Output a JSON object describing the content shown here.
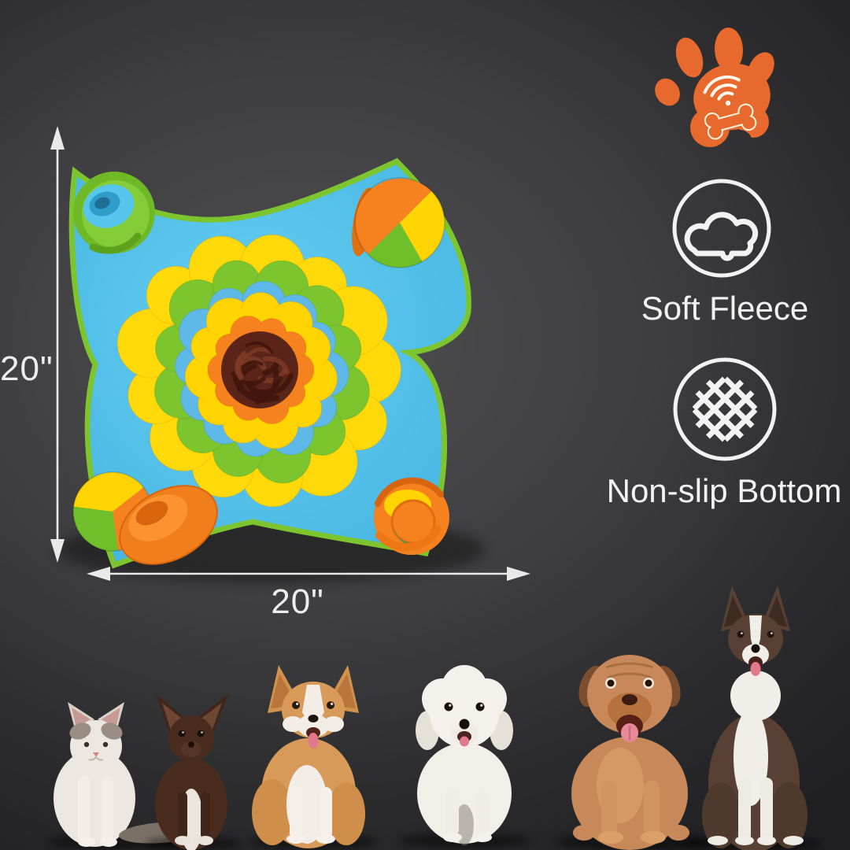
{
  "colors": {
    "accent-orange": "#e7692d",
    "icon-white": "#f2f2f2",
    "mat-blue": "#56c6ec",
    "mat-green": "#7cc52f",
    "petal-yellow": "#ffd90a",
    "petal-green": "#7cc52f",
    "petal-blue": "#5fb9e8",
    "ring-yellow": "#ffd400",
    "ring-orange": "#f6821f",
    "center-brown": "#5a2418"
  },
  "logo": {
    "name": "paw-wifi-bone"
  },
  "dimensions": {
    "height": "20\"",
    "width": "20\""
  },
  "features": [
    {
      "icon": "cloud-icon",
      "label": "Soft Fleece"
    },
    {
      "icon": "mesh-icon",
      "label": "Non-slip Bottom"
    }
  ],
  "product": {
    "type": "snuffle mat",
    "shape": "four-petal flower mat"
  },
  "pets": [
    {
      "name": "cat"
    },
    {
      "name": "chihuahua"
    },
    {
      "name": "corgi"
    },
    {
      "name": "bichon frise"
    },
    {
      "name": "mastiff puppy"
    },
    {
      "name": "border collie"
    }
  ]
}
